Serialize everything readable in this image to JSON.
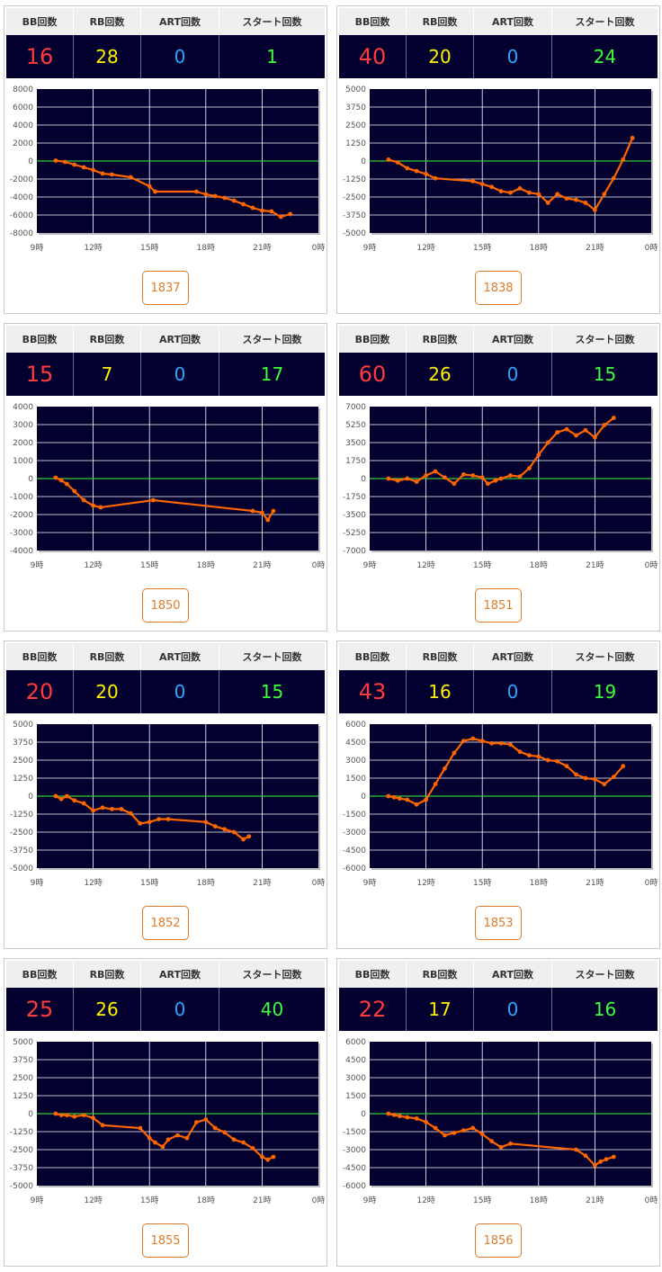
{
  "headers": {
    "bb": "BB回数",
    "rb": "RB回数",
    "art": "ART回数",
    "start": "スタート回数"
  },
  "x_ticks": [
    "9時",
    "12時",
    "15時",
    "18時",
    "21時",
    "0時"
  ],
  "colors": {
    "plot_bg": "#03002f",
    "line": "#ff6600",
    "zero_line": "#33cc33",
    "grid": "#ffffff",
    "bb": "#ff3b3b",
    "rb": "#fff200",
    "art": "#2aa6ff",
    "start": "#3cff3c"
  },
  "machines": [
    {
      "bb": "16",
      "rb": "28",
      "art": "0",
      "start": "1",
      "number": "1837"
    },
    {
      "bb": "40",
      "rb": "20",
      "art": "0",
      "start": "24",
      "number": "1838"
    },
    {
      "bb": "15",
      "rb": "7",
      "art": "0",
      "start": "17",
      "number": "1850"
    },
    {
      "bb": "60",
      "rb": "26",
      "art": "0",
      "start": "15",
      "number": "1851"
    },
    {
      "bb": "20",
      "rb": "20",
      "art": "0",
      "start": "15",
      "number": "1852"
    },
    {
      "bb": "43",
      "rb": "16",
      "art": "0",
      "start": "19",
      "number": "1853"
    },
    {
      "bb": "25",
      "rb": "26",
      "art": "0",
      "start": "40",
      "number": "1855"
    },
    {
      "bb": "22",
      "rb": "17",
      "art": "0",
      "start": "16",
      "number": "1856"
    }
  ],
  "chart_data": [
    {
      "type": "line",
      "machine": "1837",
      "ylim": [
        -8000,
        8000
      ],
      "y_ticks": [
        "8000",
        "6000",
        "4000",
        "2000",
        "0",
        "-2000",
        "-4000",
        "-6000",
        "-8000"
      ],
      "xlim": [
        9,
        24
      ],
      "x": [
        10,
        10.5,
        11,
        11.5,
        12,
        12.5,
        13,
        14,
        15,
        15.3,
        17.5,
        18,
        18.5,
        19,
        19.5,
        20,
        20.5,
        21,
        21.5,
        22,
        22.5
      ],
      "y": [
        50,
        -100,
        -400,
        -700,
        -1000,
        -1400,
        -1500,
        -1800,
        -2800,
        -3400,
        -3400,
        -3700,
        -3900,
        -4100,
        -4400,
        -4800,
        -5200,
        -5500,
        -5600,
        -6200,
        -5900
      ]
    },
    {
      "type": "line",
      "machine": "1838",
      "ylim": [
        -5000,
        5000
      ],
      "y_ticks": [
        "5000",
        "3750",
        "2500",
        "1250",
        "0",
        "-1250",
        "-2500",
        "-3750",
        "-5000"
      ],
      "xlim": [
        9,
        24
      ],
      "x": [
        10,
        10.5,
        11,
        11.5,
        12,
        12.5,
        14.5,
        15,
        15.5,
        16,
        16.5,
        17,
        17.5,
        18,
        18.5,
        19,
        19.5,
        20,
        20.5,
        21,
        21.5,
        22,
        22.5,
        23
      ],
      "y": [
        100,
        -100,
        -500,
        -700,
        -900,
        -1200,
        -1400,
        -1600,
        -1800,
        -2100,
        -2200,
        -1900,
        -2200,
        -2300,
        -2900,
        -2300,
        -2600,
        -2700,
        -2900,
        -3400,
        -2300,
        -1200,
        100,
        1600
      ]
    },
    {
      "type": "line",
      "machine": "1850",
      "ylim": [
        -4000,
        4000
      ],
      "y_ticks": [
        "4000",
        "3000",
        "2000",
        "1000",
        "0",
        "-1000",
        "-2000",
        "-3000",
        "-4000"
      ],
      "xlim": [
        9,
        24
      ],
      "x": [
        10,
        10.3,
        10.6,
        11,
        11.5,
        12,
        12.4,
        15.2,
        20.5,
        21,
        21.3,
        21.6
      ],
      "y": [
        50,
        -100,
        -300,
        -700,
        -1200,
        -1500,
        -1600,
        -1200,
        -1800,
        -1900,
        -2300,
        -1800
      ]
    },
    {
      "type": "line",
      "machine": "1851",
      "ylim": [
        -7000,
        7000
      ],
      "y_ticks": [
        "7000",
        "5250",
        "3500",
        "1750",
        "0",
        "-1750",
        "-3500",
        "-5250",
        "-7000"
      ],
      "xlim": [
        9,
        24
      ],
      "x": [
        10,
        10.5,
        11,
        11.5,
        12,
        12.5,
        13,
        13.5,
        14,
        14.5,
        15,
        15.3,
        15.7,
        16,
        16.5,
        17,
        17.5,
        18,
        18.5,
        19,
        19.5,
        20,
        20.5,
        21,
        21.5,
        22
      ],
      "y": [
        0,
        -200,
        0,
        -300,
        300,
        700,
        100,
        -500,
        400,
        300,
        100,
        -500,
        -200,
        0,
        300,
        200,
        1000,
        2300,
        3500,
        4500,
        4800,
        4200,
        4700,
        4000,
        5200,
        5900
      ]
    },
    {
      "type": "line",
      "machine": "1852",
      "ylim": [
        -5000,
        5000
      ],
      "y_ticks": [
        "5000",
        "3750",
        "2500",
        "1250",
        "0",
        "-1250",
        "-2500",
        "-3750",
        "-5000"
      ],
      "xlim": [
        9,
        24
      ],
      "x": [
        10,
        10.3,
        10.6,
        11,
        11.5,
        12,
        12.5,
        13,
        13.5,
        14,
        14.5,
        15,
        15.5,
        16,
        18,
        18.5,
        19,
        19.5,
        20,
        20.3
      ],
      "y": [
        0,
        -200,
        0,
        -300,
        -500,
        -1000,
        -800,
        -900,
        -900,
        -1200,
        -1900,
        -1800,
        -1600,
        -1600,
        -1800,
        -2100,
        -2300,
        -2500,
        -3000,
        -2800
      ]
    },
    {
      "type": "line",
      "machine": "1853",
      "ylim": [
        -6000,
        6000
      ],
      "y_ticks": [
        "6000",
        "4500",
        "3000",
        "1500",
        "0",
        "-1500",
        "-3000",
        "-4500",
        "-6000"
      ],
      "xlim": [
        9,
        24
      ],
      "x": [
        10,
        10.3,
        10.6,
        11,
        11.5,
        12,
        12.5,
        13,
        13.5,
        14,
        14.5,
        15,
        15.5,
        16,
        16.5,
        17,
        17.5,
        18,
        18.5,
        19,
        19.5,
        20,
        20.5,
        21,
        21.5,
        22,
        22.5
      ],
      "y": [
        0,
        -100,
        -200,
        -300,
        -700,
        -300,
        1000,
        2300,
        3600,
        4600,
        4800,
        4600,
        4400,
        4400,
        4300,
        3700,
        3400,
        3300,
        3000,
        2900,
        2500,
        1800,
        1500,
        1400,
        1000,
        1600,
        2500
      ]
    },
    {
      "type": "line",
      "machine": "1855",
      "ylim": [
        -5000,
        5000
      ],
      "y_ticks": [
        "5000",
        "3750",
        "2500",
        "1250",
        "0",
        "-1250",
        "-2500",
        "-3750",
        "-5000"
      ],
      "xlim": [
        9,
        24
      ],
      "x": [
        10,
        10.3,
        10.6,
        11,
        11.5,
        12,
        12.5,
        14.5,
        15,
        15.3,
        15.7,
        16,
        16.5,
        17,
        17.5,
        18,
        18.5,
        19,
        19.5,
        20,
        20.5,
        21,
        21.3,
        21.6
      ],
      "y": [
        0,
        -100,
        -100,
        -200,
        -100,
        -300,
        -800,
        -1000,
        -1700,
        -2000,
        -2300,
        -1800,
        -1500,
        -1700,
        -600,
        -400,
        -1000,
        -1300,
        -1800,
        -2000,
        -2400,
        -3000,
        -3200,
        -3000
      ]
    },
    {
      "type": "line",
      "machine": "1856",
      "ylim": [
        -6000,
        6000
      ],
      "y_ticks": [
        "6000",
        "4500",
        "3000",
        "1500",
        "0",
        "-1500",
        "-3000",
        "-4500",
        "-6000"
      ],
      "xlim": [
        9,
        24
      ],
      "x": [
        10,
        10.3,
        10.6,
        11,
        11.5,
        12,
        12.5,
        13,
        13.5,
        14,
        14.5,
        15,
        15.5,
        16,
        16.5,
        20,
        20.5,
        21,
        21.3,
        21.6,
        22
      ],
      "y": [
        0,
        -100,
        -200,
        -300,
        -400,
        -700,
        -1200,
        -1800,
        -1600,
        -1400,
        -1200,
        -1700,
        -2300,
        -2800,
        -2500,
        -3000,
        -3500,
        -4300,
        -4000,
        -3800,
        -3600
      ]
    }
  ]
}
